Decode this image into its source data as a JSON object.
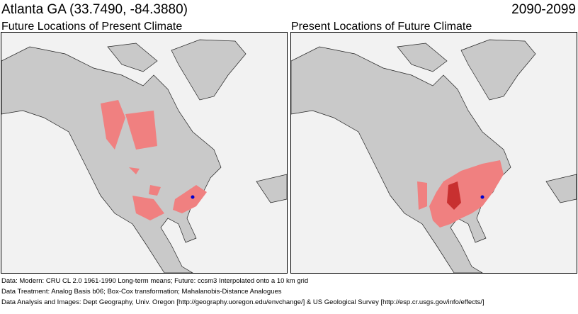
{
  "header": {
    "location": "Atlanta GA  (33.7490, -84.3880)",
    "period": "2090-2099"
  },
  "panels": [
    {
      "title": "Future Locations of Present Climate"
    },
    {
      "title": "Present Locations of Future Climate"
    }
  ],
  "colors": {
    "background": "#f2f2f2",
    "land": "#c9c9c9",
    "analog": "#f08080",
    "strong_analog": "#c83030",
    "marker": "#0000cc"
  },
  "footer": [
    "Data:  Modern: CRU CL 2.0 1961-1990 Long-term means; Future: ccsm3 Interpolated onto a 10 km grid",
    "Data Treatment:  Analog Basis b06; Box-Cox transformation; Mahalanobis-Distance Analogues",
    "Data Analysis and Images:  Dept Geography, Univ. Oregon [http://geography.uoregon.edu/envchange/] & US Geological Survey [http://esp.cr.usgs.gov/info/effects/]"
  ]
}
